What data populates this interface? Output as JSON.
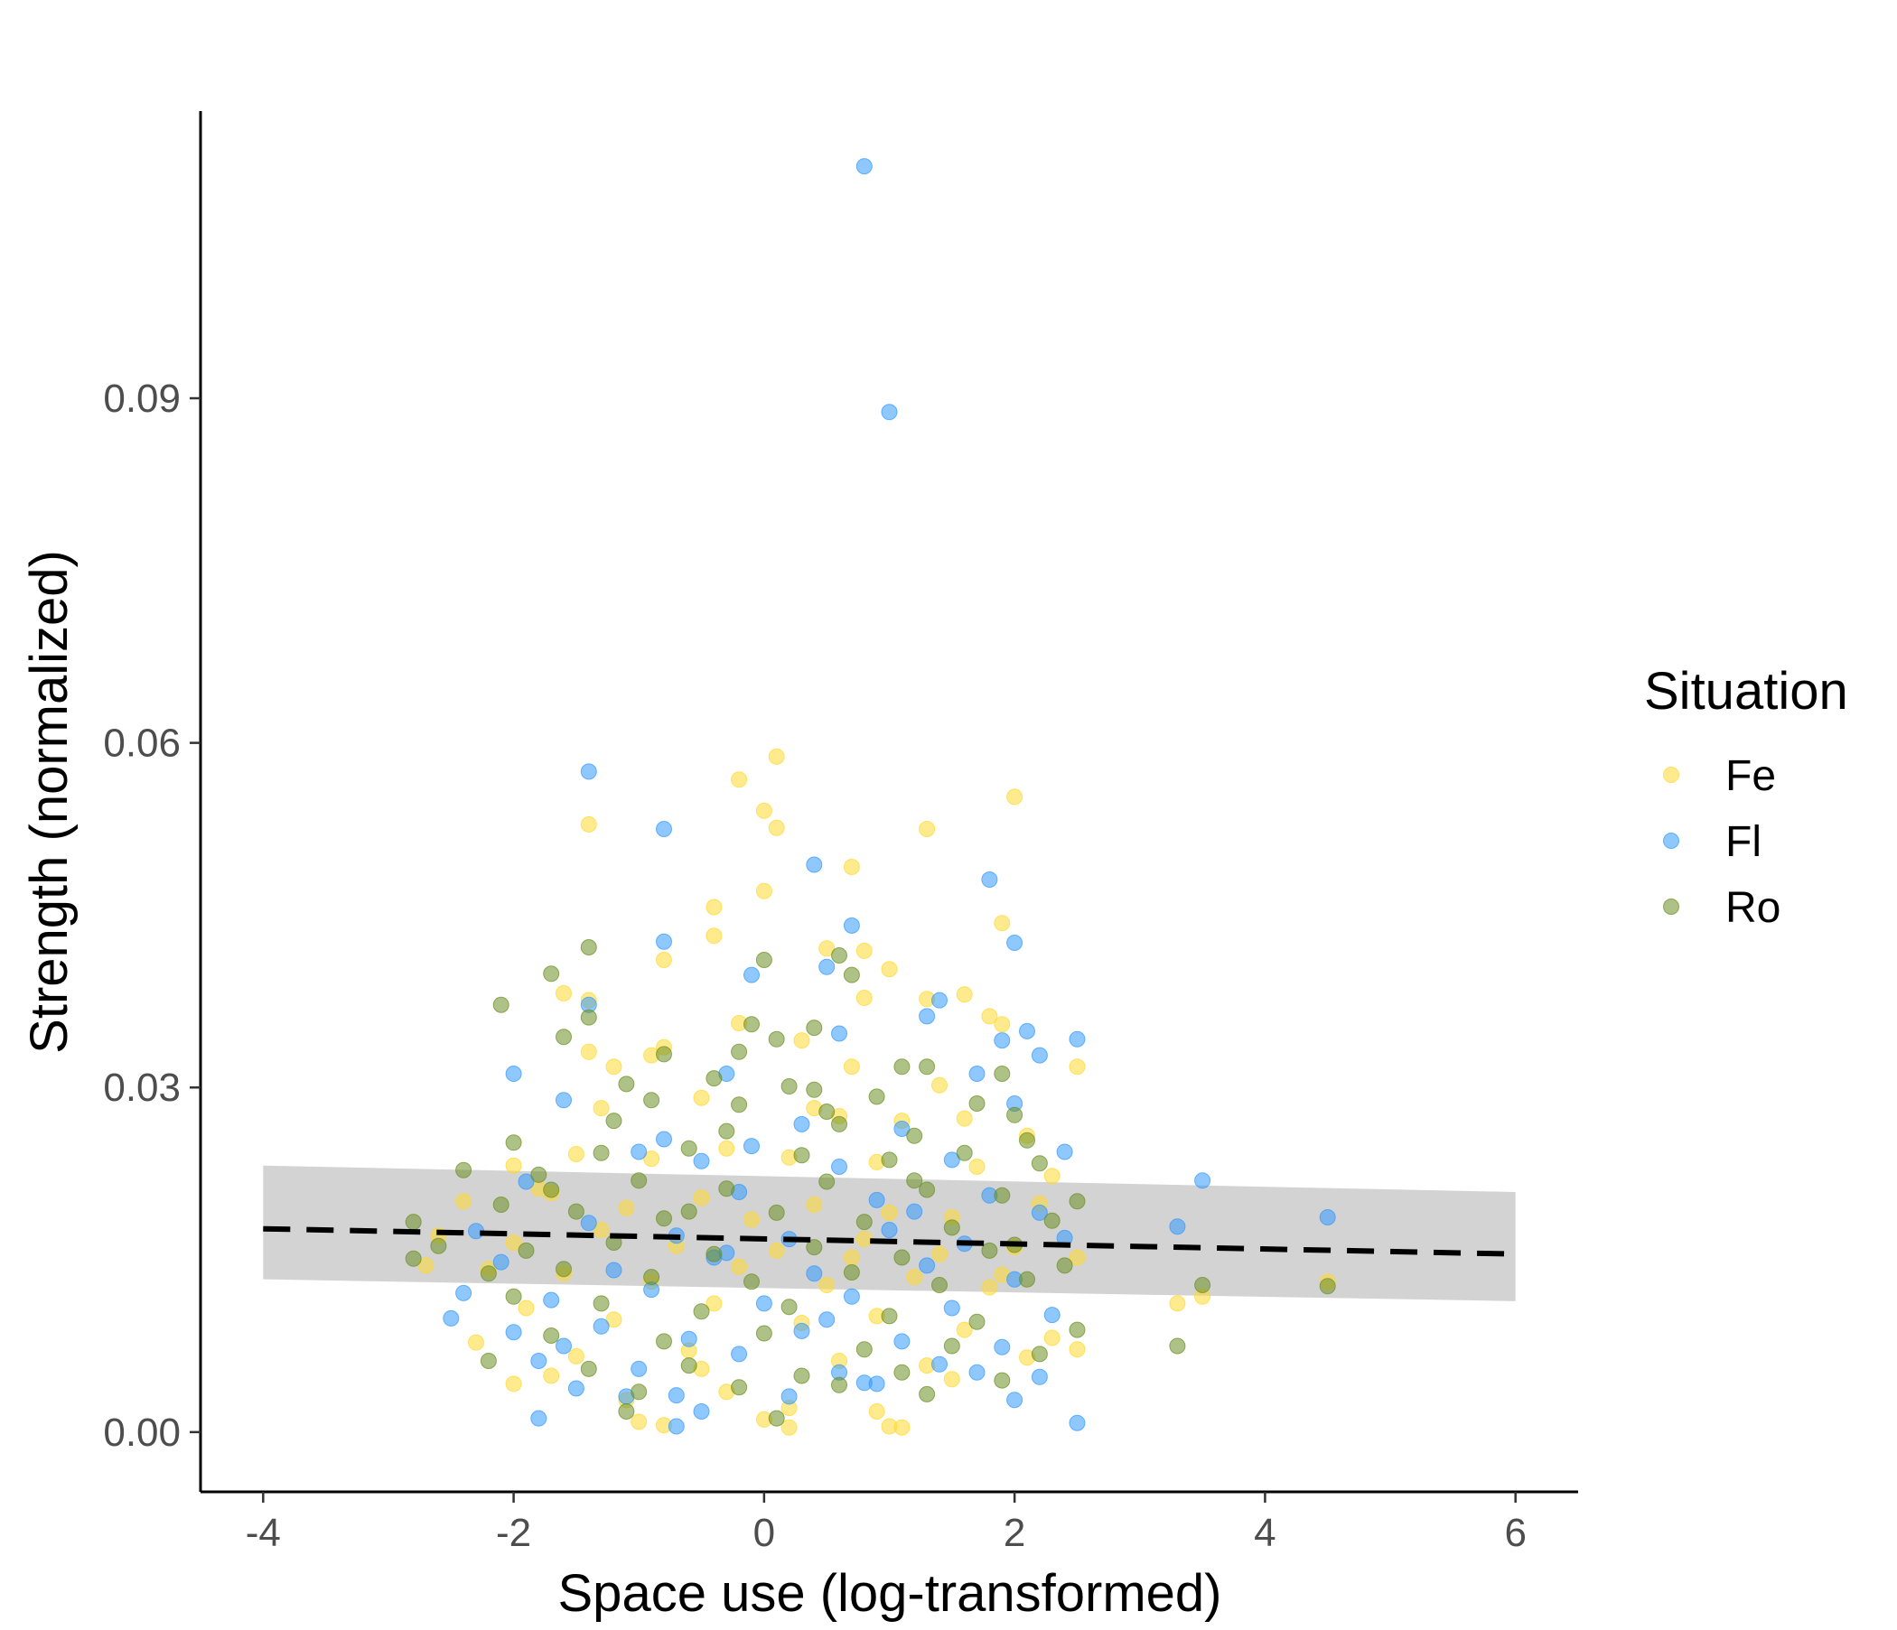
{
  "chart_data": {
    "type": "scatter",
    "title": "",
    "xlabel": "Space use (log-transformed)",
    "ylabel": "Strength (normalized)",
    "xlim": [
      -4.5,
      6.5
    ],
    "ylim": [
      -0.0052,
      0.115
    ],
    "x_ticks": [
      "-4",
      "-2",
      "0",
      "2",
      "4",
      "6"
    ],
    "x_tick_values": [
      -4,
      -2,
      0,
      2,
      4,
      6
    ],
    "y_ticks": [
      "0.00",
      "0.03",
      "0.06",
      "0.09"
    ],
    "y_tick_values": [
      0,
      0.03,
      0.06,
      0.09
    ],
    "grid": false,
    "legend": {
      "title": "Situation",
      "position": "right",
      "entries": [
        "Fe",
        "Fl",
        "Ro"
      ]
    },
    "colors": {
      "Fe": "#FFD92F",
      "Fl": "#3399FF",
      "Ro": "#6B8E23",
      "band": "#D3D3D3",
      "line": "#000000"
    },
    "series": [
      {
        "name": "Fe",
        "points": [
          [
            0.1,
            0.0588
          ],
          [
            -0.2,
            0.0568
          ],
          [
            0.0,
            0.0541
          ],
          [
            0.1,
            0.0526
          ],
          [
            -1.4,
            0.0529
          ],
          [
            1.3,
            0.0525
          ],
          [
            2.0,
            0.0553
          ],
          [
            0.7,
            0.0492
          ],
          [
            0.0,
            0.0471
          ],
          [
            -0.4,
            0.0457
          ],
          [
            -0.4,
            0.0432
          ],
          [
            1.9,
            0.0443
          ],
          [
            -0.8,
            0.0411
          ],
          [
            0.5,
            0.0421
          ],
          [
            0.8,
            0.0419
          ],
          [
            1.0,
            0.0403
          ],
          [
            -1.6,
            0.0382
          ],
          [
            -1.4,
            0.0376
          ],
          [
            1.3,
            0.0377
          ],
          [
            1.6,
            0.0381
          ],
          [
            0.8,
            0.0378
          ],
          [
            1.9,
            0.0355
          ],
          [
            -0.2,
            0.0356
          ],
          [
            1.8,
            0.0362
          ],
          [
            -1.4,
            0.0331
          ],
          [
            -1.2,
            0.0318
          ],
          [
            -0.9,
            0.0328
          ],
          [
            -0.8,
            0.0335
          ],
          [
            0.3,
            0.0341
          ],
          [
            0.7,
            0.0318
          ],
          [
            1.4,
            0.0302
          ],
          [
            2.5,
            0.0318
          ],
          [
            -1.3,
            0.0282
          ],
          [
            -0.5,
            0.0291
          ],
          [
            0.6,
            0.0275
          ],
          [
            1.1,
            0.0271
          ],
          [
            1.6,
            0.0273
          ],
          [
            2.1,
            0.0258
          ],
          [
            -2.0,
            0.0232
          ],
          [
            -1.5,
            0.0242
          ],
          [
            -0.9,
            0.0238
          ],
          [
            -0.3,
            0.0247
          ],
          [
            0.2,
            0.0239
          ],
          [
            0.9,
            0.0235
          ],
          [
            1.7,
            0.0231
          ],
          [
            2.3,
            0.0223
          ],
          [
            -2.4,
            0.0201
          ],
          [
            -1.7,
            0.0208
          ],
          [
            -1.1,
            0.0195
          ],
          [
            -0.5,
            0.0204
          ],
          [
            0.4,
            0.0198
          ],
          [
            1.0,
            0.0191
          ],
          [
            1.5,
            0.0187
          ],
          [
            2.2,
            0.0199
          ],
          [
            -2.6,
            0.0171
          ],
          [
            -2.0,
            0.0165
          ],
          [
            -1.3,
            0.0176
          ],
          [
            -0.7,
            0.0162
          ],
          [
            0.1,
            0.0158
          ],
          [
            0.8,
            0.0168
          ],
          [
            1.4,
            0.0155
          ],
          [
            2.0,
            0.0161
          ],
          [
            2.5,
            0.0152
          ],
          [
            -2.2,
            0.0142
          ],
          [
            -1.6,
            0.0138
          ],
          [
            -0.9,
            0.0131
          ],
          [
            -0.2,
            0.0144
          ],
          [
            0.5,
            0.0128
          ],
          [
            1.2,
            0.0135
          ],
          [
            1.8,
            0.0126
          ],
          [
            -1.9,
            0.0108
          ],
          [
            -1.2,
            0.0098
          ],
          [
            -0.4,
            0.0112
          ],
          [
            0.3,
            0.0095
          ],
          [
            0.9,
            0.0101
          ],
          [
            1.6,
            0.0089
          ],
          [
            2.3,
            0.0082
          ],
          [
            -2.3,
            0.0078
          ],
          [
            -1.5,
            0.0066
          ],
          [
            -0.6,
            0.0071
          ],
          [
            0.6,
            0.0062
          ],
          [
            1.3,
            0.0058
          ],
          [
            2.1,
            0.0065
          ],
          [
            -2.0,
            0.0042
          ],
          [
            -1.1,
            0.0028
          ],
          [
            -0.3,
            0.0035
          ],
          [
            0.2,
            0.0021
          ],
          [
            0.9,
            0.0018
          ],
          [
            1.5,
            0.0046
          ],
          [
            -1.0,
            0.0009
          ],
          [
            -0.8,
            0.0006
          ],
          [
            0.0,
            0.0011
          ],
          [
            0.2,
            0.0004
          ],
          [
            1.0,
            0.0005
          ],
          [
            1.1,
            0.0004
          ],
          [
            -0.5,
            0.0055
          ],
          [
            3.3,
            0.0112
          ],
          [
            3.5,
            0.0118
          ],
          [
            4.5,
            0.0131
          ],
          [
            -2.7,
            0.0145
          ],
          [
            -1.8,
            0.0212
          ],
          [
            0.4,
            0.0282
          ],
          [
            2.5,
            0.0072
          ],
          [
            -0.1,
            0.0185
          ],
          [
            1.9,
            0.0137
          ],
          [
            -1.7,
            0.0049
          ],
          [
            0.7,
            0.0152
          ]
        ]
      },
      {
        "name": "Fl",
        "points": [
          [
            0.8,
            0.1102
          ],
          [
            1.0,
            0.0888
          ],
          [
            -1.4,
            0.0575
          ],
          [
            -0.8,
            0.0525
          ],
          [
            0.4,
            0.0494
          ],
          [
            1.8,
            0.0481
          ],
          [
            2.0,
            0.0426
          ],
          [
            -0.8,
            0.0427
          ],
          [
            0.7,
            0.0441
          ],
          [
            0.5,
            0.0405
          ],
          [
            -0.1,
            0.0398
          ],
          [
            1.4,
            0.0376
          ],
          [
            -1.4,
            0.0372
          ],
          [
            1.3,
            0.0362
          ],
          [
            1.9,
            0.0341
          ],
          [
            2.1,
            0.0349
          ],
          [
            2.5,
            0.0342
          ],
          [
            2.2,
            0.0328
          ],
          [
            0.6,
            0.0347
          ],
          [
            -1.6,
            0.0289
          ],
          [
            -2.0,
            0.0312
          ],
          [
            -0.3,
            0.0312
          ],
          [
            1.7,
            0.0312
          ],
          [
            2.0,
            0.0286
          ],
          [
            0.3,
            0.0268
          ],
          [
            -0.8,
            0.0255
          ],
          [
            1.1,
            0.0264
          ],
          [
            2.4,
            0.0244
          ],
          [
            -1.0,
            0.0244
          ],
          [
            -0.5,
            0.0236
          ],
          [
            0.6,
            0.0231
          ],
          [
            1.5,
            0.0237
          ],
          [
            3.5,
            0.0219
          ],
          [
            -1.9,
            0.0218
          ],
          [
            -0.2,
            0.0209
          ],
          [
            0.9,
            0.0202
          ],
          [
            1.8,
            0.0206
          ],
          [
            2.2,
            0.0191
          ],
          [
            4.5,
            0.0187
          ],
          [
            3.3,
            0.0179
          ],
          [
            -2.3,
            0.0175
          ],
          [
            -1.4,
            0.0182
          ],
          [
            -0.7,
            0.0171
          ],
          [
            0.2,
            0.0168
          ],
          [
            1.0,
            0.0176
          ],
          [
            1.6,
            0.0164
          ],
          [
            2.4,
            0.0169
          ],
          [
            -2.1,
            0.0148
          ],
          [
            -1.2,
            0.0141
          ],
          [
            -0.4,
            0.0152
          ],
          [
            0.4,
            0.0138
          ],
          [
            1.3,
            0.0145
          ],
          [
            2.0,
            0.0133
          ],
          [
            -2.4,
            0.0121
          ],
          [
            -1.7,
            0.0115
          ],
          [
            -0.9,
            0.0124
          ],
          [
            0.0,
            0.0112
          ],
          [
            0.7,
            0.0118
          ],
          [
            1.5,
            0.0108
          ],
          [
            2.3,
            0.0102
          ],
          [
            -2.0,
            0.0087
          ],
          [
            -1.3,
            0.0092
          ],
          [
            -0.6,
            0.0081
          ],
          [
            0.3,
            0.0088
          ],
          [
            1.1,
            0.0079
          ],
          [
            1.9,
            0.0074
          ],
          [
            -1.8,
            0.0062
          ],
          [
            -1.0,
            0.0055
          ],
          [
            -0.2,
            0.0068
          ],
          [
            0.6,
            0.0052
          ],
          [
            1.4,
            0.0059
          ],
          [
            2.2,
            0.0048
          ],
          [
            -1.5,
            0.0038
          ],
          [
            -0.7,
            0.0032
          ],
          [
            0.2,
            0.0031
          ],
          [
            0.9,
            0.0042
          ],
          [
            2.0,
            0.0028
          ],
          [
            -1.1,
            0.0031
          ],
          [
            -1.8,
            0.0012
          ],
          [
            -0.7,
            0.0005
          ],
          [
            -0.5,
            0.0018
          ],
          [
            2.5,
            0.0008
          ],
          [
            0.8,
            0.0043
          ],
          [
            -0.3,
            0.0156
          ],
          [
            1.2,
            0.0192
          ],
          [
            -2.5,
            0.0099
          ],
          [
            -1.6,
            0.0075
          ],
          [
            0.5,
            0.0098
          ],
          [
            1.7,
            0.0052
          ],
          [
            -0.1,
            0.0249
          ]
        ]
      },
      {
        "name": "Ro",
        "points": [
          [
            -1.4,
            0.0422
          ],
          [
            0.0,
            0.0411
          ],
          [
            -1.7,
            0.0399
          ],
          [
            0.6,
            0.0415
          ],
          [
            0.7,
            0.0398
          ],
          [
            -2.1,
            0.0372
          ],
          [
            -1.4,
            0.0361
          ],
          [
            -0.1,
            0.0355
          ],
          [
            0.4,
            0.0352
          ],
          [
            -1.6,
            0.0344
          ],
          [
            0.1,
            0.0342
          ],
          [
            -0.2,
            0.0331
          ],
          [
            -0.8,
            0.0329
          ],
          [
            1.3,
            0.0318
          ],
          [
            1.9,
            0.0312
          ],
          [
            -1.1,
            0.0303
          ],
          [
            -0.4,
            0.0308
          ],
          [
            0.2,
            0.0301
          ],
          [
            1.1,
            0.0318
          ],
          [
            -0.9,
            0.0289
          ],
          [
            -0.2,
            0.0285
          ],
          [
            0.5,
            0.0279
          ],
          [
            0.9,
            0.0292
          ],
          [
            1.7,
            0.0286
          ],
          [
            2.0,
            0.0276
          ],
          [
            -1.2,
            0.0271
          ],
          [
            -0.3,
            0.0262
          ],
          [
            0.6,
            0.0268
          ],
          [
            1.2,
            0.0258
          ],
          [
            2.1,
            0.0254
          ],
          [
            -2.0,
            0.0252
          ],
          [
            -1.3,
            0.0243
          ],
          [
            -0.6,
            0.0247
          ],
          [
            0.3,
            0.0241
          ],
          [
            1.0,
            0.0237
          ],
          [
            1.6,
            0.0243
          ],
          [
            2.2,
            0.0234
          ],
          [
            -2.4,
            0.0228
          ],
          [
            -1.8,
            0.0224
          ],
          [
            -1.0,
            0.0219
          ],
          [
            -0.3,
            0.0212
          ],
          [
            0.5,
            0.0218
          ],
          [
            1.3,
            0.0211
          ],
          [
            1.9,
            0.0206
          ],
          [
            2.5,
            0.0201
          ],
          [
            -2.1,
            0.0198
          ],
          [
            -1.5,
            0.0192
          ],
          [
            -0.8,
            0.0186
          ],
          [
            0.1,
            0.0191
          ],
          [
            0.8,
            0.0183
          ],
          [
            1.5,
            0.0178
          ],
          [
            2.3,
            0.0184
          ],
          [
            -2.8,
            0.0183
          ],
          [
            -2.6,
            0.0162
          ],
          [
            -1.9,
            0.0158
          ],
          [
            -1.2,
            0.0165
          ],
          [
            -0.4,
            0.0155
          ],
          [
            0.4,
            0.0161
          ],
          [
            1.1,
            0.0152
          ],
          [
            1.8,
            0.0158
          ],
          [
            2.4,
            0.0145
          ],
          [
            -2.2,
            0.0138
          ],
          [
            -1.6,
            0.0142
          ],
          [
            -0.9,
            0.0135
          ],
          [
            -0.1,
            0.0131
          ],
          [
            0.7,
            0.0139
          ],
          [
            1.4,
            0.0128
          ],
          [
            2.1,
            0.0133
          ],
          [
            3.5,
            0.0128
          ],
          [
            4.5,
            0.0127
          ],
          [
            -2.0,
            0.0118
          ],
          [
            -1.3,
            0.0112
          ],
          [
            -0.5,
            0.0105
          ],
          [
            0.2,
            0.0109
          ],
          [
            1.0,
            0.0101
          ],
          [
            1.7,
            0.0096
          ],
          [
            2.5,
            0.0089
          ],
          [
            -1.7,
            0.0084
          ],
          [
            -0.8,
            0.0079
          ],
          [
            0.0,
            0.0086
          ],
          [
            0.8,
            0.0072
          ],
          [
            1.5,
            0.0075
          ],
          [
            2.2,
            0.0068
          ],
          [
            3.3,
            0.0075
          ],
          [
            -2.2,
            0.0062
          ],
          [
            -1.4,
            0.0055
          ],
          [
            -0.6,
            0.0058
          ],
          [
            0.3,
            0.0049
          ],
          [
            1.1,
            0.0052
          ],
          [
            1.9,
            0.0045
          ],
          [
            -1.0,
            0.0035
          ],
          [
            -0.2,
            0.0039
          ],
          [
            0.6,
            0.0041
          ],
          [
            1.3,
            0.0033
          ],
          [
            -1.1,
            0.0018
          ],
          [
            0.1,
            0.0012
          ],
          [
            -2.8,
            0.0151
          ],
          [
            -1.7,
            0.0211
          ],
          [
            0.4,
            0.0298
          ],
          [
            1.2,
            0.0219
          ],
          [
            -0.6,
            0.0192
          ],
          [
            2.0,
            0.0163
          ]
        ]
      }
    ],
    "fit_line": {
      "style": "dashed",
      "x": [
        -4,
        6
      ],
      "y": [
        0.0177,
        0.0155
      ]
    },
    "confidence_band": {
      "x": [
        -4,
        6
      ],
      "upper": [
        0.0232,
        0.0209
      ],
      "lower": [
        0.0133,
        0.0114
      ]
    }
  }
}
